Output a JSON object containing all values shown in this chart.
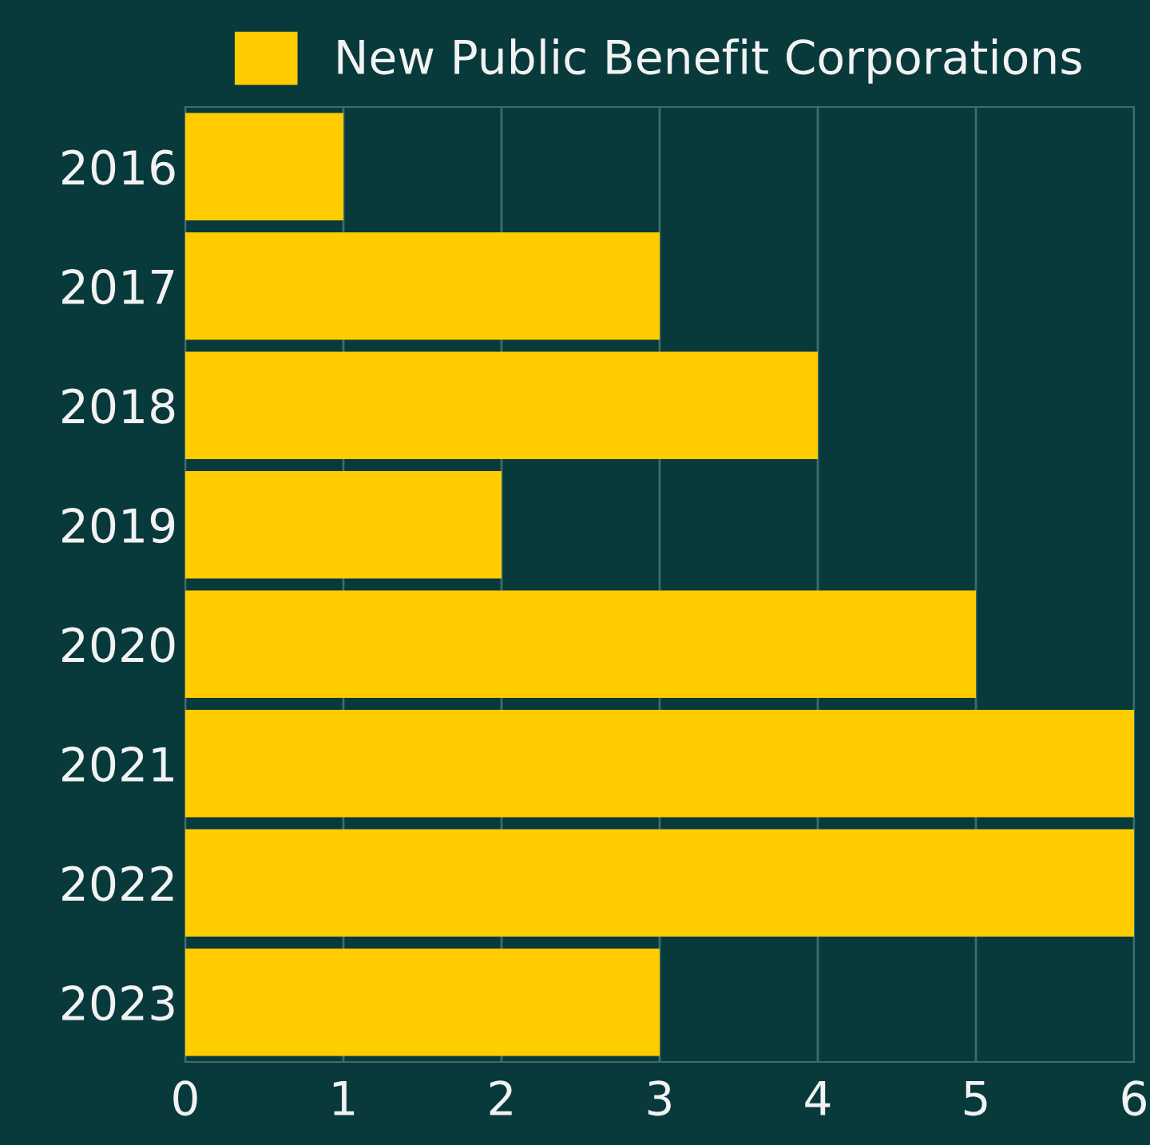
{
  "chart_data": {
    "type": "bar",
    "orientation": "horizontal",
    "categories": [
      "2016",
      "2017",
      "2018",
      "2019",
      "2020",
      "2021",
      "2022",
      "2023"
    ],
    "series": [
      {
        "name": "New Public Benefit Corporations",
        "color": "#ffcc00",
        "values": [
          1,
          3,
          4,
          2,
          5,
          6,
          6,
          3
        ]
      }
    ],
    "xlim": [
      0,
      6
    ],
    "xticks": [
      0,
      1,
      2,
      3,
      4,
      5,
      6
    ],
    "grid": "x",
    "legend": "top"
  }
}
